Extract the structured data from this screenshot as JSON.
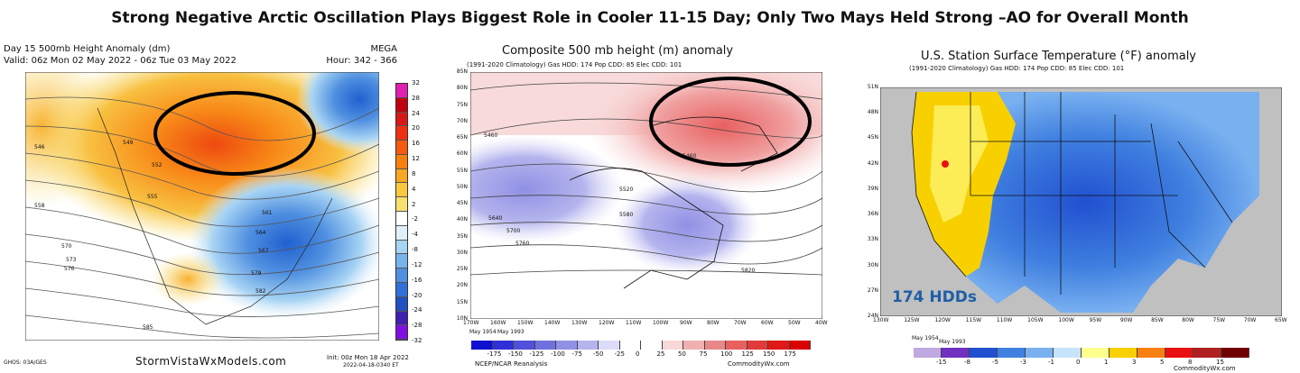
{
  "title": "Strong Negative Arctic Oscillation Plays Biggest Role in Cooler 11-15 Day; Only Two Mays Held Strong –AO for Overall Month",
  "panel1": {
    "title_left": "Day 15 500mb Height Anomaly (dm)",
    "title_right": "MEGA",
    "valid": "Valid: 06z Mon 02 May 2022 - 06z Tue 03 May 2022",
    "hour": "Hour: 342 - 366",
    "colorbar_ticks": [
      "32",
      "28",
      "24",
      "20",
      "16",
      "12",
      "8",
      "4",
      "2",
      "-2",
      "-4",
      "-8",
      "-12",
      "-16",
      "-20",
      "-24",
      "-28",
      "-32"
    ],
    "colorbar_colors": [
      "#e020b0",
      "#c00010",
      "#d81818",
      "#ee3010",
      "#f45a10",
      "#f88010",
      "#f8a820",
      "#f8c840",
      "#f8e070",
      "#ffffff",
      "#e0f0fa",
      "#a8d4f4",
      "#78b4ec",
      "#5090e0",
      "#3070d8",
      "#2050c0",
      "#4020b0",
      "#8010e0"
    ],
    "contour_labels": [
      "546",
      "549",
      "552",
      "555",
      "558",
      "561",
      "564",
      "567",
      "570",
      "573",
      "576",
      "579",
      "582",
      "585"
    ],
    "footer_left": "GHOS: 03A/GES",
    "footer_center": "StormVistaWxModels.com",
    "footer_init": "Init: 00z Mon 18 Apr 2022",
    "footer_stamp": "2022-04-18-0340 ET"
  },
  "panel2": {
    "title": "Composite 500 mb height (m) anomaly",
    "subtitle": "(1991-2020 Climatology)   Gas HDD: 174 Pop CDD: 85 Elec CDD: 101",
    "lat_ticks": [
      "85N",
      "80N",
      "75N",
      "70N",
      "65N",
      "60N",
      "55N",
      "50N",
      "45N",
      "40N",
      "35N",
      "30N",
      "25N",
      "20N",
      "15N",
      "10N"
    ],
    "lon_ticks": [
      "170W",
      "160W",
      "150W",
      "140W",
      "130W",
      "120W",
      "110W",
      "100W",
      "90W",
      "80W",
      "70W",
      "60W",
      "50W",
      "40W"
    ],
    "contour_labels": [
      "5460",
      "5520",
      "5580",
      "5640",
      "5700",
      "5760",
      "5820",
      "5460"
    ],
    "years": [
      "May\n1954",
      "May\n1993"
    ],
    "year1": "May 1954",
    "year2": "May 1993",
    "colorbar_ticks": [
      "-175",
      "-150",
      "-125",
      "-100",
      "-75",
      "-50",
      "-25",
      "0",
      "25",
      "50",
      "75",
      "100",
      "125",
      "150",
      "175"
    ],
    "colorbar_colors": [
      "#1010d0",
      "#3030d8",
      "#5050d8",
      "#7070dc",
      "#9090e4",
      "#b4b4ee",
      "#dcdcf8",
      "#ffffff",
      "#ffffff",
      "#f8d8d8",
      "#f0b0b0",
      "#e88888",
      "#e86060",
      "#e03a3a",
      "#e01818",
      "#d80000"
    ],
    "footer_left": "NCEP/NCAR Reanalysis",
    "footer_right": "CommodityWx.com"
  },
  "panel3": {
    "title": "U.S. Station Surface Temperature (°F) anomaly",
    "subtitle": "(1991-2020 Climatology)   Gas HDD: 174 Pop CDD: 85 Elec CDD: 101",
    "lat_ticks": [
      "51N",
      "48N",
      "45N",
      "42N",
      "39N",
      "36N",
      "33N",
      "30N",
      "27N",
      "24N"
    ],
    "lon_ticks": [
      "130W",
      "125W",
      "120W",
      "115W",
      "110W",
      "105W",
      "100W",
      "95W",
      "90W",
      "85W",
      "80W",
      "75W",
      "70W",
      "65W"
    ],
    "annotation": "174 HDDs",
    "year1": "May 1954",
    "year2": "May 1993",
    "colorbar_ticks": [
      "-15",
      "-8",
      "-5",
      "-3",
      "-1",
      "0",
      "1",
      "3",
      "5",
      "8",
      "15"
    ],
    "colorbar_colors": [
      "#c0a8e0",
      "#7030c0",
      "#2050d0",
      "#4080e0",
      "#78b0f0",
      "#c8e4fa",
      "#ffff90",
      "#f8d000",
      "#f88010",
      "#e81010",
      "#b02020",
      "#700000"
    ],
    "footer_right": "CommodityWx.com"
  }
}
